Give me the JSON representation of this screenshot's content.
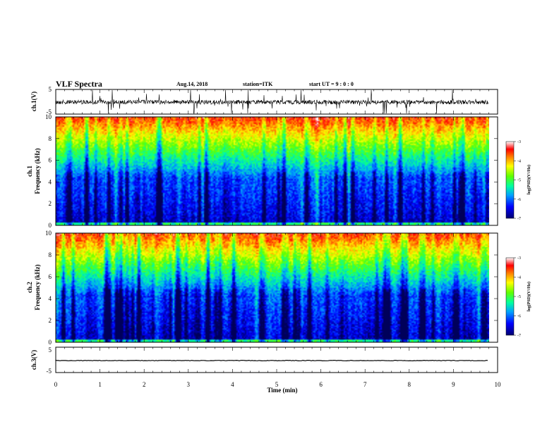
{
  "header": {
    "title": "VLF Spectra",
    "date": "Aug.14, 2018",
    "station": "station=ITK",
    "start": "start UT =  9 : 0 : 0"
  },
  "colors": {
    "spectrogram_scale": [
      "#000080",
      "#0000ff",
      "#00c0ff",
      "#00ff80",
      "#80ff00",
      "#ffff00",
      "#ff8000",
      "#ff0000",
      "#ffffff"
    ]
  },
  "chart_data": [
    {
      "type": "line",
      "name": "ch1-waveform",
      "ylabel": "ch.1(V)",
      "ylim": [
        -5,
        5
      ],
      "yticks": [
        "5",
        "-5"
      ],
      "xlim": [
        0,
        10
      ]
    },
    {
      "type": "heatmap",
      "name": "ch1-spectrogram",
      "ylabel": "ch.1\nFrequency (kHz)",
      "ylim": [
        0,
        10
      ],
      "yticks": [
        "0",
        "2",
        "4",
        "6",
        "8",
        "10"
      ],
      "xlim": [
        0,
        10
      ],
      "colorbar": {
        "label": "log(PSD)(V²/Hz)",
        "range": [
          -7,
          -3
        ],
        "ticks": [
          "-3",
          "-4",
          "-5",
          "-6",
          "-7"
        ]
      }
    },
    {
      "type": "heatmap",
      "name": "ch2-spectrogram",
      "ylabel": "ch.2\nFrequency (kHz)",
      "ylim": [
        0,
        10
      ],
      "yticks": [
        "0",
        "2",
        "4",
        "6",
        "8",
        "10"
      ],
      "xlim": [
        0,
        10
      ],
      "colorbar": {
        "label": "log(PSD)(V²/Hz)",
        "range": [
          -7,
          -3
        ],
        "ticks": [
          "-3",
          "-4",
          "-5",
          "-6",
          "-7"
        ]
      }
    },
    {
      "type": "line",
      "name": "ch3-waveform",
      "ylabel": "ch.3(V)",
      "ylim": [
        -5,
        5
      ],
      "yticks": [
        "5",
        "-5"
      ],
      "xlim": [
        0,
        10
      ],
      "xlabel": "Time (min)",
      "xticks": [
        "0",
        "1",
        "2",
        "3",
        "4",
        "5",
        "6",
        "7",
        "8",
        "9",
        "10"
      ]
    }
  ]
}
